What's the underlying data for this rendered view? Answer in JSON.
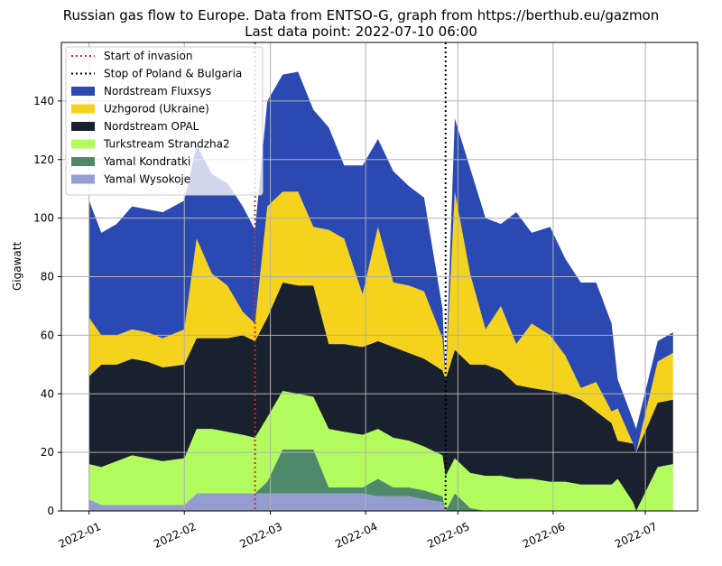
{
  "chart_data": {
    "type": "area",
    "title": "Russian gas flow to Europe. Data from ENTSO-G, graph from https://berthub.eu/gazmon",
    "subtitle": "Last data point: 2022-07-10 06:00",
    "xlabel": "",
    "ylabel": "Gigawatt",
    "xlim": [
      "2021-12-23",
      "2022-07-18"
    ],
    "ylim": [
      0,
      160
    ],
    "yticks": [
      0,
      20,
      40,
      60,
      80,
      100,
      120,
      140
    ],
    "xticks": [
      "2022-01",
      "2022-02",
      "2022-03",
      "2022-04",
      "2022-05",
      "2022-06",
      "2022-07"
    ],
    "grid": true,
    "legend_position": "top-left",
    "stacked": true,
    "x": [
      "2022-01-01",
      "2022-01-05",
      "2022-01-10",
      "2022-01-15",
      "2022-01-20",
      "2022-01-25",
      "2022-02-01",
      "2022-02-05",
      "2022-02-10",
      "2022-02-15",
      "2022-02-20",
      "2022-02-24",
      "2022-02-28",
      "2022-03-05",
      "2022-03-10",
      "2022-03-15",
      "2022-03-20",
      "2022-03-25",
      "2022-03-31",
      "2022-04-05",
      "2022-04-10",
      "2022-04-15",
      "2022-04-20",
      "2022-04-26",
      "2022-04-27",
      "2022-04-30",
      "2022-05-05",
      "2022-05-10",
      "2022-05-15",
      "2022-05-20",
      "2022-05-25",
      "2022-05-31",
      "2022-06-05",
      "2022-06-10",
      "2022-06-15",
      "2022-06-20",
      "2022-06-22",
      "2022-06-27",
      "2022-06-28",
      "2022-07-05",
      "2022-07-10"
    ],
    "series": [
      {
        "name": "Yamal Wysokoje",
        "color": "#949cd0",
        "values": [
          4,
          2,
          2,
          2,
          2,
          2,
          2,
          6,
          6,
          6,
          6,
          6,
          6,
          6,
          6,
          6,
          6,
          6,
          6,
          5,
          5,
          5,
          4,
          3,
          0,
          0,
          0,
          0,
          0,
          0,
          0,
          0,
          0,
          0,
          0,
          0,
          0,
          0,
          0,
          0,
          0
        ]
      },
      {
        "name": "Yamal Kondratki",
        "color": "#4e8a6a",
        "values": [
          0,
          0,
          0,
          0,
          0,
          0,
          0,
          0,
          0,
          0,
          0,
          0,
          4,
          15,
          15,
          15,
          2,
          2,
          2,
          6,
          3,
          3,
          3,
          2,
          0,
          6,
          1,
          0,
          0,
          0,
          0,
          0,
          0,
          0,
          0,
          0,
          0,
          0,
          0,
          0,
          0
        ]
      },
      {
        "name": "Turkstream Strandzha2",
        "color": "#b3fc5e",
        "values": [
          12,
          13,
          15,
          17,
          16,
          15,
          16,
          22,
          22,
          21,
          20,
          19,
          22,
          20,
          19,
          18,
          20,
          19,
          18,
          17,
          17,
          16,
          15,
          14,
          12,
          12,
          12,
          12,
          12,
          11,
          11,
          10,
          10,
          9,
          9,
          9,
          11,
          3,
          0,
          15,
          16
        ]
      },
      {
        "name": "Nordstream OPAL",
        "color": "#19202e",
        "values": [
          30,
          35,
          33,
          33,
          33,
          32,
          32,
          31,
          31,
          32,
          34,
          33,
          34,
          37,
          37,
          38,
          29,
          30,
          30,
          30,
          31,
          30,
          30,
          29,
          33,
          37,
          37,
          38,
          36,
          32,
          31,
          31,
          30,
          29,
          25,
          21,
          13,
          20,
          20,
          22,
          22
        ]
      },
      {
        "name": "Uzhgorod (Ukraine)",
        "color": "#f5d31c",
        "values": [
          20,
          10,
          10,
          10,
          10,
          10,
          12,
          34,
          22,
          18,
          8,
          6,
          38,
          31,
          32,
          20,
          39,
          36,
          18,
          39,
          22,
          23,
          23,
          11,
          0,
          54,
          31,
          12,
          22,
          14,
          22,
          19,
          13,
          4,
          10,
          4,
          11,
          0,
          0,
          14,
          16
        ]
      },
      {
        "name": "Nordstream Fluxsys",
        "color": "#2b49b3",
        "values": [
          40,
          35,
          38,
          42,
          42,
          43,
          44,
          32,
          34,
          35,
          36,
          32,
          36,
          40,
          41,
          40,
          35,
          25,
          44,
          30,
          38,
          34,
          32,
          10,
          0,
          25,
          36,
          38,
          28,
          45,
          31,
          37,
          33,
          36,
          34,
          30,
          10,
          8,
          8,
          7,
          7
        ]
      }
    ],
    "annotations": [
      {
        "label": "Start of invasion",
        "x": "2022-02-24",
        "color": "#d62728",
        "style": "dotted"
      },
      {
        "label": "Stop of Poland & Bulgaria",
        "x": "2022-04-27",
        "color": "#000000",
        "style": "dotted"
      }
    ]
  }
}
